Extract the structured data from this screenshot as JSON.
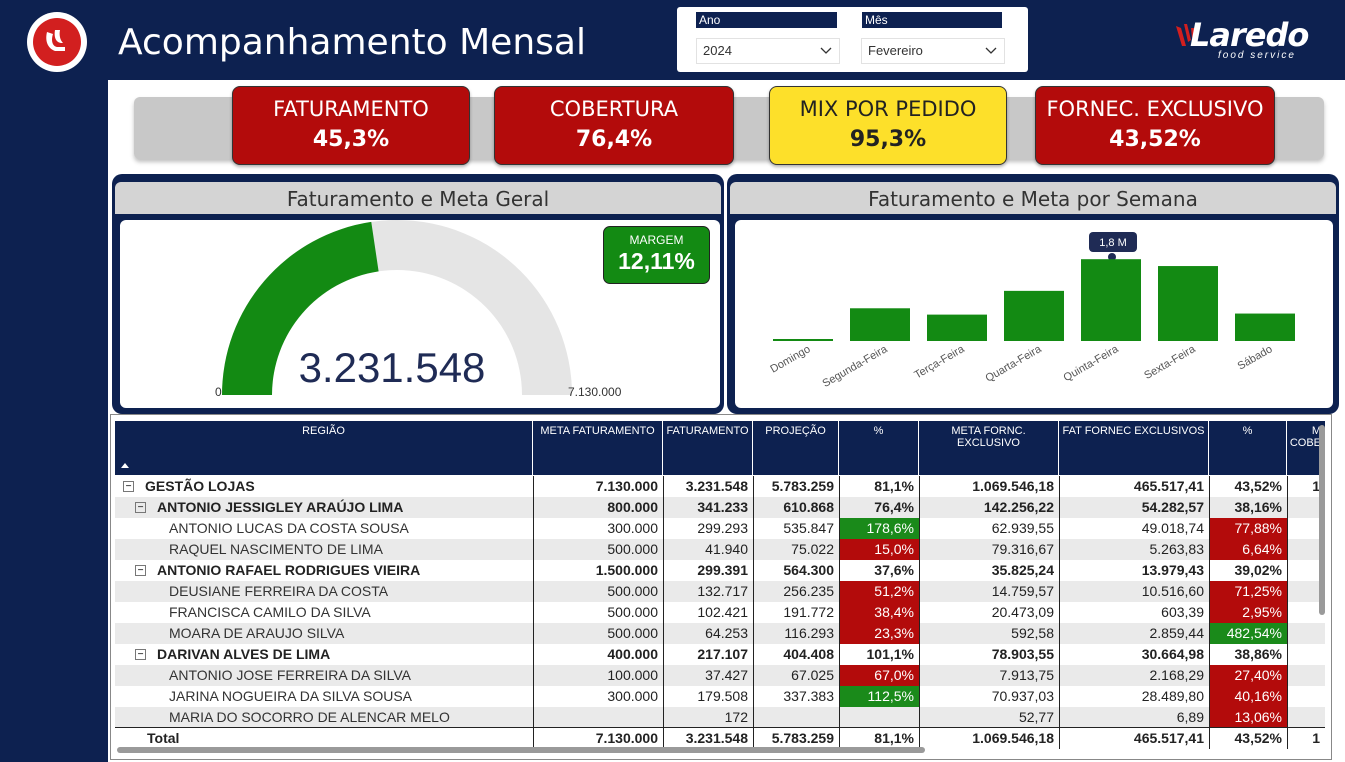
{
  "header": {
    "title": "Acompanhamento Mensal",
    "brand_name": "Laredo",
    "brand_sub": "food service"
  },
  "filters": {
    "ano_label": "Ano",
    "ano_value": "2024",
    "mes_label": "Mês",
    "mes_value": "Fevereiro"
  },
  "kpis": [
    {
      "label": "FATURAMENTO",
      "value": "45,3%",
      "color": "#b30b0b"
    },
    {
      "label": "COBERTURA",
      "value": "76,4%",
      "color": "#b30b0b"
    },
    {
      "label": "MIX POR PEDIDO",
      "value": "95,3%",
      "color": "#fde02a"
    },
    {
      "label": "FORNEC. EXCLUSIVO",
      "value": "43,52%",
      "color": "#b30b0b"
    }
  ],
  "gauge_panel": {
    "title": "Faturamento e Meta Geral",
    "value": "3.231.548",
    "min": "0",
    "max": "7.130.000",
    "fill_fraction": 0.453,
    "margin_label": "MARGEM",
    "margin_value": "12,11%"
  },
  "week_panel": {
    "title": "Faturamento e Meta por Semana",
    "tooltip": "1,8 M"
  },
  "chart_data": {
    "type": "bar",
    "categories": [
      "Domingo",
      "Segunda-Feira",
      "Terça-Feira",
      "Quarta-Feira",
      "Quinta-Feira",
      "Sexta-Feira",
      "Sábado"
    ],
    "values": [
      0.02,
      0.62,
      0.5,
      0.95,
      1.55,
      1.42,
      0.52
    ],
    "color": "#138a13"
  },
  "table": {
    "headers": [
      "REGIÃO",
      "META FATURAMENTO",
      "FATURAMENTO",
      "PROJEÇÃO",
      "%",
      "META FORNC. EXCLUSIVO",
      "FAT FORNEC EXCLUSIVOS",
      "%",
      "M\nCOBE"
    ],
    "rows": [
      {
        "level": 0,
        "toggle": "−",
        "name": "GESTÃO LOJAS",
        "meta": "7.130.000",
        "fat": "3.231.548",
        "proj": "5.783.259",
        "pct": "81,1%",
        "pctc": "",
        "mfe": "1.069.546,18",
        "ffe": "465.517,41",
        "pct2": "43,52%",
        "pct2c": "",
        "extra": "1"
      },
      {
        "level": 1,
        "toggle": "−",
        "name": "ANTONIO JESSIGLEY ARAÚJO LIMA",
        "meta": "800.000",
        "fat": "341.233",
        "proj": "610.868",
        "pct": "76,4%",
        "pctc": "",
        "mfe": "142.256,22",
        "ffe": "54.282,57",
        "pct2": "38,16%",
        "pct2c": "",
        "extra": ""
      },
      {
        "level": 2,
        "toggle": "",
        "name": "ANTONIO LUCAS DA COSTA SOUSA",
        "meta": "300.000",
        "fat": "299.293",
        "proj": "535.847",
        "pct": "178,6%",
        "pctc": "green",
        "mfe": "62.939,55",
        "ffe": "49.018,74",
        "pct2": "77,88%",
        "pct2c": "red",
        "extra": ""
      },
      {
        "level": 2,
        "toggle": "",
        "name": "RAQUEL NASCIMENTO DE LIMA",
        "meta": "500.000",
        "fat": "41.940",
        "proj": "75.022",
        "pct": "15,0%",
        "pctc": "red",
        "mfe": "79.316,67",
        "ffe": "5.263,83",
        "pct2": "6,64%",
        "pct2c": "red",
        "extra": ""
      },
      {
        "level": 1,
        "toggle": "−",
        "name": "ANTONIO RAFAEL RODRIGUES VIEIRA",
        "meta": "1.500.000",
        "fat": "299.391",
        "proj": "564.300",
        "pct": "37,6%",
        "pctc": "",
        "mfe": "35.825,24",
        "ffe": "13.979,43",
        "pct2": "39,02%",
        "pct2c": "",
        "extra": ""
      },
      {
        "level": 2,
        "toggle": "",
        "name": "DEUSIANE FERREIRA DA COSTA",
        "meta": "500.000",
        "fat": "132.717",
        "proj": "256.235",
        "pct": "51,2%",
        "pctc": "red",
        "mfe": "14.759,57",
        "ffe": "10.516,60",
        "pct2": "71,25%",
        "pct2c": "red",
        "extra": ""
      },
      {
        "level": 2,
        "toggle": "",
        "name": "FRANCISCA CAMILO DA SILVA",
        "meta": "500.000",
        "fat": "102.421",
        "proj": "191.772",
        "pct": "38,4%",
        "pctc": "red",
        "mfe": "20.473,09",
        "ffe": "603,39",
        "pct2": "2,95%",
        "pct2c": "red",
        "extra": ""
      },
      {
        "level": 2,
        "toggle": "",
        "name": "MOARA DE ARAUJO SILVA",
        "meta": "500.000",
        "fat": "64.253",
        "proj": "116.293",
        "pct": "23,3%",
        "pctc": "red",
        "mfe": "592,58",
        "ffe": "2.859,44",
        "pct2": "482,54%",
        "pct2c": "green",
        "extra": ""
      },
      {
        "level": 1,
        "toggle": "−",
        "name": "DARIVAN ALVES DE LIMA",
        "meta": "400.000",
        "fat": "217.107",
        "proj": "404.408",
        "pct": "101,1%",
        "pctc": "",
        "mfe": "78.903,55",
        "ffe": "30.664,98",
        "pct2": "38,86%",
        "pct2c": "",
        "extra": ""
      },
      {
        "level": 2,
        "toggle": "",
        "name": "ANTONIO JOSE FERREIRA DA SILVA",
        "meta": "100.000",
        "fat": "37.427",
        "proj": "67.025",
        "pct": "67,0%",
        "pctc": "red",
        "mfe": "7.913,75",
        "ffe": "2.168,29",
        "pct2": "27,40%",
        "pct2c": "red",
        "extra": ""
      },
      {
        "level": 2,
        "toggle": "",
        "name": "JARINA NOGUEIRA DA SILVA SOUSA",
        "meta": "300.000",
        "fat": "179.508",
        "proj": "337.383",
        "pct": "112,5%",
        "pctc": "green",
        "mfe": "70.937,03",
        "ffe": "28.489,80",
        "pct2": "40,16%",
        "pct2c": "red",
        "extra": ""
      },
      {
        "level": 2,
        "toggle": "",
        "name": "MARIA DO SOCORRO DE ALENCAR MELO",
        "meta": "",
        "fat": "172",
        "proj": "",
        "pct": "",
        "pctc": "",
        "mfe": "52,77",
        "ffe": "6,89",
        "pct2": "13,06%",
        "pct2c": "red",
        "extra": ""
      },
      {
        "level": 0,
        "toggle": "",
        "name": "Total",
        "meta": "7.130.000",
        "fat": "3.231.548",
        "proj": "5.783.259",
        "pct": "81,1%",
        "pctc": "",
        "mfe": "1.069.546,18",
        "ffe": "465.517,41",
        "pct2": "43,52%",
        "pct2c": "",
        "extra": "1"
      }
    ]
  }
}
